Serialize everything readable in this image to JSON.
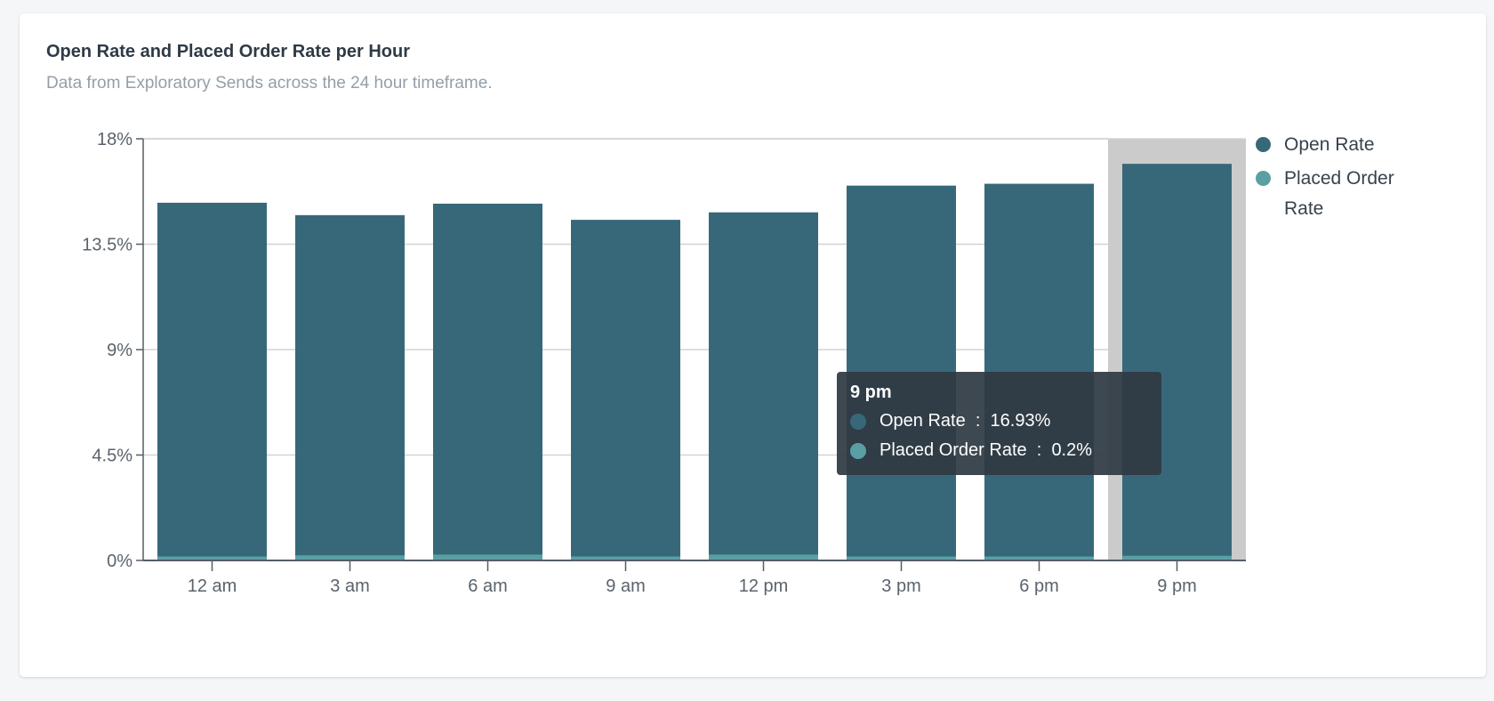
{
  "colors": {
    "open_rate": "#37687a",
    "placed_order_rate": "#5a9fa3",
    "highlight": "#cbcbcb",
    "grid": "#d0d3d6",
    "axis": "#555d66"
  },
  "chart_data": {
    "type": "bar",
    "title": "Open Rate and Placed Order Rate per Hour",
    "subtitle": "Data from Exploratory Sends across the 24 hour timeframe.",
    "categories": [
      "12 am",
      "3 am",
      "6 am",
      "9 am",
      "12 pm",
      "3 pm",
      "6 pm",
      "9 pm"
    ],
    "series": [
      {
        "name": "Open Rate",
        "values": [
          15.27,
          14.74,
          15.23,
          14.54,
          14.86,
          16.0,
          16.08,
          16.93
        ]
      },
      {
        "name": "Placed Order Rate",
        "values": [
          0.17,
          0.22,
          0.25,
          0.17,
          0.25,
          0.17,
          0.17,
          0.2
        ]
      }
    ],
    "ylim": [
      0,
      18
    ],
    "yticks": [
      "0%",
      "4.5%",
      "9%",
      "13.5%",
      "18%"
    ],
    "ytick_values": [
      0,
      4.5,
      9,
      13.5,
      18
    ],
    "grid": true,
    "legend": "right",
    "highlighted_category": "9 pm"
  },
  "legend": [
    {
      "label": "Open Rate"
    },
    {
      "label": "Placed Order\nRate"
    }
  ],
  "tooltip": {
    "title": "9 pm",
    "rows": [
      {
        "label": "Open Rate",
        "value": "16.93%"
      },
      {
        "label": "Placed Order Rate",
        "value": "0.2%"
      }
    ]
  }
}
